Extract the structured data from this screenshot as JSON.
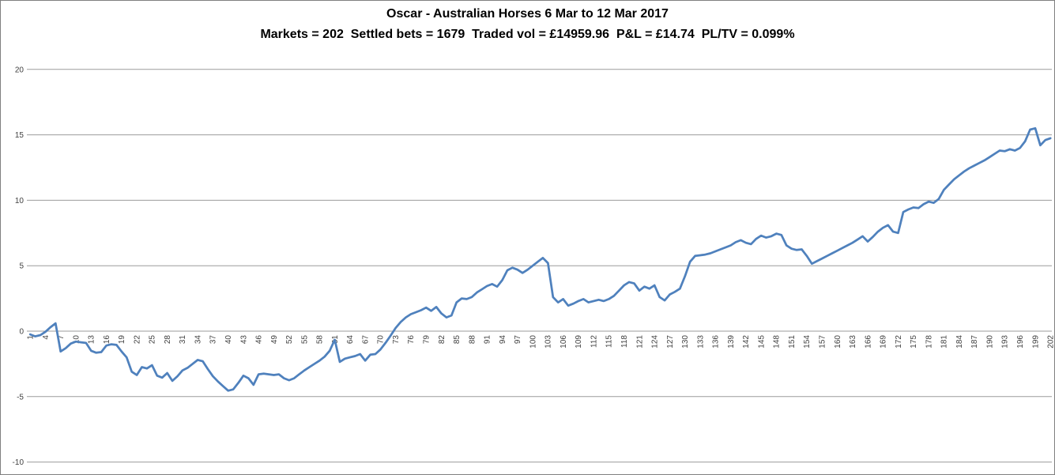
{
  "chart_data": {
    "type": "line",
    "title": "Oscar - Australian Horses 6 Mar to 12 Mar 2017",
    "subtitle": "Markets = 202  Settled bets = 1679  Traded vol = £14959.96  P&L = £14.74  PL/TV = 0.099%",
    "xlabel": "",
    "ylabel": "",
    "x_start": 1,
    "x_step": 1,
    "n_points": 202,
    "values": [
      -0.25,
      -0.4,
      -0.3,
      -0.05,
      0.3,
      0.6,
      -1.55,
      -1.3,
      -0.95,
      -0.8,
      -0.85,
      -0.9,
      -1.5,
      -1.65,
      -1.6,
      -1.1,
      -1.0,
      -1.05,
      -1.55,
      -2.0,
      -3.1,
      -3.35,
      -2.75,
      -2.85,
      -2.6,
      -3.4,
      -3.55,
      -3.2,
      -3.8,
      -3.45,
      -3.0,
      -2.8,
      -2.5,
      -2.2,
      -2.3,
      -2.9,
      -3.45,
      -3.85,
      -4.2,
      -4.55,
      -4.45,
      -3.95,
      -3.4,
      -3.6,
      -4.1,
      -3.3,
      -3.25,
      -3.3,
      -3.35,
      -3.3,
      -3.6,
      -3.75,
      -3.6,
      -3.3,
      -3.0,
      -2.75,
      -2.5,
      -2.25,
      -1.95,
      -1.5,
      -0.65,
      -2.35,
      -2.1,
      -2.0,
      -1.9,
      -1.75,
      -2.25,
      -1.8,
      -1.75,
      -1.4,
      -0.9,
      -0.35,
      0.25,
      0.7,
      1.05,
      1.3,
      1.45,
      1.6,
      1.8,
      1.55,
      1.85,
      1.35,
      1.05,
      1.2,
      2.2,
      2.5,
      2.45,
      2.6,
      2.95,
      3.2,
      3.45,
      3.6,
      3.4,
      3.9,
      4.65,
      4.85,
      4.7,
      4.45,
      4.7,
      5.0,
      5.3,
      5.6,
      5.2,
      2.6,
      2.2,
      2.45,
      1.95,
      2.1,
      2.3,
      2.45,
      2.2,
      2.3,
      2.4,
      2.3,
      2.45,
      2.7,
      3.1,
      3.5,
      3.75,
      3.65,
      3.1,
      3.4,
      3.25,
      3.5,
      2.6,
      2.35,
      2.8,
      3.0,
      3.25,
      4.2,
      5.3,
      5.75,
      5.8,
      5.85,
      5.95,
      6.1,
      6.25,
      6.4,
      6.55,
      6.8,
      6.95,
      6.75,
      6.65,
      7.05,
      7.3,
      7.15,
      7.25,
      7.45,
      7.35,
      6.55,
      6.3,
      6.2,
      6.25,
      5.75,
      5.15,
      5.35,
      5.55,
      5.75,
      5.95,
      6.15,
      6.35,
      6.55,
      6.75,
      7.0,
      7.25,
      6.85,
      7.2,
      7.6,
      7.9,
      8.1,
      7.6,
      7.5,
      9.1,
      9.3,
      9.45,
      9.4,
      9.7,
      9.9,
      9.8,
      10.1,
      10.8,
      11.2,
      11.6,
      11.9,
      12.2,
      12.45,
      12.65,
      12.85,
      13.05,
      13.3,
      13.55,
      13.8,
      13.75,
      13.9,
      13.8,
      14.0,
      14.5,
      15.4,
      15.5,
      14.2,
      14.6,
      14.74
    ],
    "x_tick_labels": [
      1,
      4,
      7,
      10,
      13,
      16,
      19,
      22,
      25,
      28,
      31,
      34,
      37,
      40,
      43,
      46,
      49,
      52,
      55,
      58,
      61,
      64,
      67,
      70,
      73,
      76,
      79,
      82,
      85,
      88,
      91,
      94,
      97,
      100,
      103,
      106,
      109,
      112,
      115,
      118,
      121,
      124,
      127,
      130,
      133,
      136,
      139,
      142,
      145,
      148,
      151,
      154,
      157,
      160,
      163,
      166,
      169,
      172,
      175,
      178,
      181,
      184,
      187,
      190,
      193,
      196,
      199,
      202
    ],
    "y_ticks": [
      20,
      15,
      10,
      5,
      0,
      -5,
      -10
    ],
    "ylim": [
      -10,
      20
    ],
    "grid": "horizontal",
    "legend": "none",
    "line_color": "#4F81BD",
    "gridline_color": "#9B9B9B",
    "tick_label_color": "#404040",
    "background": "#FFFFFF"
  }
}
